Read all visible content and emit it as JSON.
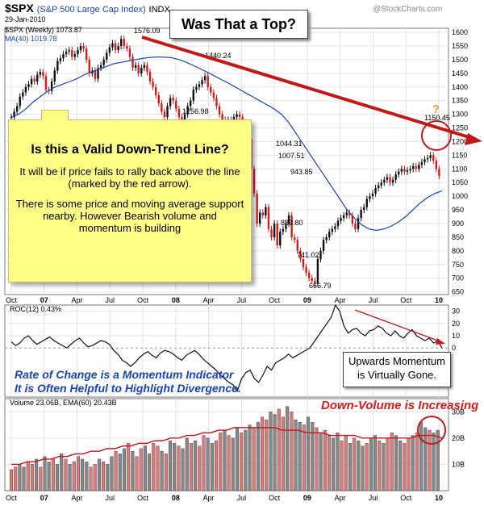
{
  "header": {
    "symbol": "$SPX",
    "name": "(S&P 500 Large Cap Index)",
    "exchange": "INDX",
    "date": "29-Jan-2010",
    "price_label": "$SPX (Weekly) 1073.87",
    "ma_label": "MA(40) 1019.78",
    "watermark": "@StockCharts.com"
  },
  "title_box": "Was That a Top?",
  "note": {
    "heading": "Is this a Valid Down-Trend Line?",
    "p1": "It will be if price fails to rally back above the line (marked by the red arrow).",
    "p2": "There is some price and moving average support nearby. However Bearish volume and momentum is building"
  },
  "roc_panel_label": "ROC(12) 0.43%",
  "volume_panel_label": "Volume 23.06B, EMA(60) 20.43B",
  "roc_note_line1": "Rate of Change is a Momentum Indicator",
  "roc_note_line2": "It is Often Helpful to Highlight Divergence.",
  "momentum_box_line1": "Upwards Momentum",
  "momentum_box_line2": "is Virtually Gone.",
  "down_volume_note": "Down-Volume is Increasing",
  "question_mark": "?",
  "colors": {
    "up": "#111111",
    "down": "#d21c1c",
    "ma": "#1a44b8",
    "trend": "#c21818",
    "note": "#ffff88",
    "accent_orange": "#f0a030"
  },
  "chart_data": [
    {
      "type": "line",
      "title": "$SPX (Weekly)",
      "x_labels": [
        "Oct",
        "07",
        "Apr",
        "Jul",
        "Oct",
        "08",
        "Apr",
        "Jul",
        "Oct",
        "09",
        "Apr",
        "Jul",
        "Oct",
        "10"
      ],
      "y_ticks": [
        650,
        700,
        750,
        800,
        850,
        900,
        950,
        1000,
        1050,
        1100,
        1150,
        1200,
        1250,
        1300,
        1350,
        1400,
        1450,
        1500,
        1550,
        1600
      ],
      "ylim": [
        640,
        1615
      ],
      "series": [
        {
          "name": "$SPX (Weekly)",
          "values": [
            1290,
            1310,
            1330,
            1365,
            1380,
            1400,
            1410,
            1430,
            1420,
            1445,
            1455,
            1440,
            1390,
            1385,
            1420,
            1460,
            1495,
            1505,
            1520,
            1530,
            1535,
            1510,
            1520,
            1535,
            1550,
            1540,
            1500,
            1450,
            1460,
            1430,
            1470,
            1480,
            1500,
            1525,
            1545,
            1560,
            1535,
            1550,
            1576,
            1550,
            1540,
            1510,
            1470,
            1480,
            1450,
            1470,
            1480,
            1455,
            1420,
            1400,
            1370,
            1340,
            1310,
            1290,
            1330,
            1360,
            1350,
            1320,
            1290,
            1270,
            1300,
            1330,
            1350,
            1390,
            1400,
            1410,
            1425,
            1440,
            1400,
            1380,
            1360,
            1330,
            1300,
            1280,
            1260,
            1280,
            1270,
            1290,
            1300,
            1290,
            1270,
            1240,
            1210,
            1100,
            1010,
            900,
            940,
            930,
            960,
            880,
            850,
            900,
            820,
            870,
            880,
            900,
            930,
            850,
            840,
            800,
            770,
            740,
            720,
            700,
            690,
            680,
            770,
            800,
            840,
            850,
            870,
            880,
            890,
            910,
            920,
            930,
            940,
            930,
            900,
            880,
            920,
            950,
            960,
            990,
            1000,
            1010,
            1030,
            1040,
            1050,
            1060,
            1070,
            1050,
            1060,
            1080,
            1090,
            1100,
            1090,
            1095,
            1100,
            1110,
            1100,
            1115,
            1125,
            1135,
            1140,
            1150,
            1130,
            1100,
            1074
          ]
        },
        {
          "name": "MA(40)",
          "values": [
            1290,
            1300,
            1320,
            1345,
            1365,
            1385,
            1400,
            1410,
            1420,
            1430,
            1445,
            1455,
            1465,
            1475,
            1485,
            1490,
            1495,
            1500,
            1505,
            1508,
            1510,
            1509,
            1507,
            1500,
            1490,
            1478,
            1465,
            1452,
            1438,
            1424,
            1410,
            1395,
            1380,
            1365,
            1350,
            1335,
            1320,
            1300,
            1270,
            1230,
            1190,
            1150,
            1110,
            1070,
            1030,
            990,
            950,
            920,
            895,
            880,
            875,
            880,
            890,
            905,
            925,
            950,
            975,
            995,
            1010,
            1020
          ]
        }
      ],
      "annotations": [
        "1576.09",
        "1440.24",
        "1256.98",
        "1044.31",
        "1007.51",
        "943.85",
        "839.80",
        "741.02",
        "666.79",
        "1150.45"
      ]
    },
    {
      "type": "line",
      "title": "ROC(12) 0.43%",
      "y_ticks": [
        0,
        10,
        20,
        30
      ],
      "ylim": [
        -40,
        35
      ],
      "series": [
        {
          "name": "ROC(12)",
          "values": [
            5,
            2,
            4,
            8,
            10,
            6,
            3,
            5,
            7,
            9,
            6,
            4,
            2,
            0,
            3,
            6,
            8,
            4,
            1,
            2,
            4,
            6,
            5,
            3,
            -2,
            -5,
            -10,
            -12,
            -15,
            -12,
            -8,
            -5,
            -3,
            -6,
            -8,
            -4,
            -2,
            -3,
            -5,
            -8,
            -10,
            -6,
            -4,
            -2,
            -5,
            -9,
            -12,
            -15,
            -18,
            -22,
            -25,
            -28,
            -30,
            -35,
            -25,
            -20,
            -18,
            -25,
            -28,
            -22,
            -15,
            -18,
            -12,
            -10,
            -8,
            -5,
            -8,
            -6,
            -4,
            -2,
            0,
            5,
            10,
            15,
            20,
            25,
            35,
            30,
            18,
            12,
            15,
            16,
            12,
            10,
            14,
            15,
            18,
            16,
            12,
            10,
            14,
            10,
            8,
            12,
            15,
            10,
            8,
            6,
            8,
            4,
            6,
            0
          ]
        }
      ]
    },
    {
      "type": "bar",
      "title": "Volume 23.06B, EMA(60) 20.43B",
      "y_ticks": [
        "10B",
        "20B",
        "30B"
      ],
      "ylim": [
        0,
        35
      ],
      "series": [
        {
          "name": "Volume",
          "values": [
            8,
            9,
            10,
            9,
            11,
            10,
            12,
            9,
            13,
            11,
            12,
            10,
            14,
            12,
            10,
            11,
            13,
            12,
            11,
            9,
            10,
            12,
            11,
            10,
            13,
            15,
            14,
            16,
            18,
            15,
            13,
            16,
            17,
            14,
            18,
            17,
            15,
            14,
            19,
            18,
            17,
            16,
            20,
            18,
            19,
            17,
            21,
            20,
            18,
            19,
            22,
            23,
            21,
            20,
            24,
            22,
            23,
            25,
            24,
            26,
            28,
            27,
            30,
            29,
            31,
            28,
            32,
            30,
            27,
            26,
            25,
            28,
            26,
            24,
            22,
            23,
            21,
            20,
            22,
            19,
            21,
            18,
            20,
            19,
            17,
            18,
            20,
            21,
            19,
            18,
            20,
            22,
            21,
            19,
            18,
            20,
            21,
            22,
            26,
            24,
            23,
            22,
            23
          ]
        },
        {
          "name": "EMA(60)",
          "values": [
            10,
            10,
            11,
            11,
            12,
            12,
            13,
            13,
            14,
            14,
            15,
            15,
            16,
            16,
            17,
            17,
            18,
            18,
            19,
            19,
            20,
            20,
            21,
            21,
            22,
            22,
            23,
            23,
            24,
            24,
            24,
            24,
            24,
            24,
            23,
            23,
            23,
            22,
            22,
            22,
            21,
            21,
            21,
            21,
            20,
            20,
            20,
            20,
            20,
            20,
            20,
            21,
            21,
            21,
            20
          ]
        }
      ]
    }
  ]
}
